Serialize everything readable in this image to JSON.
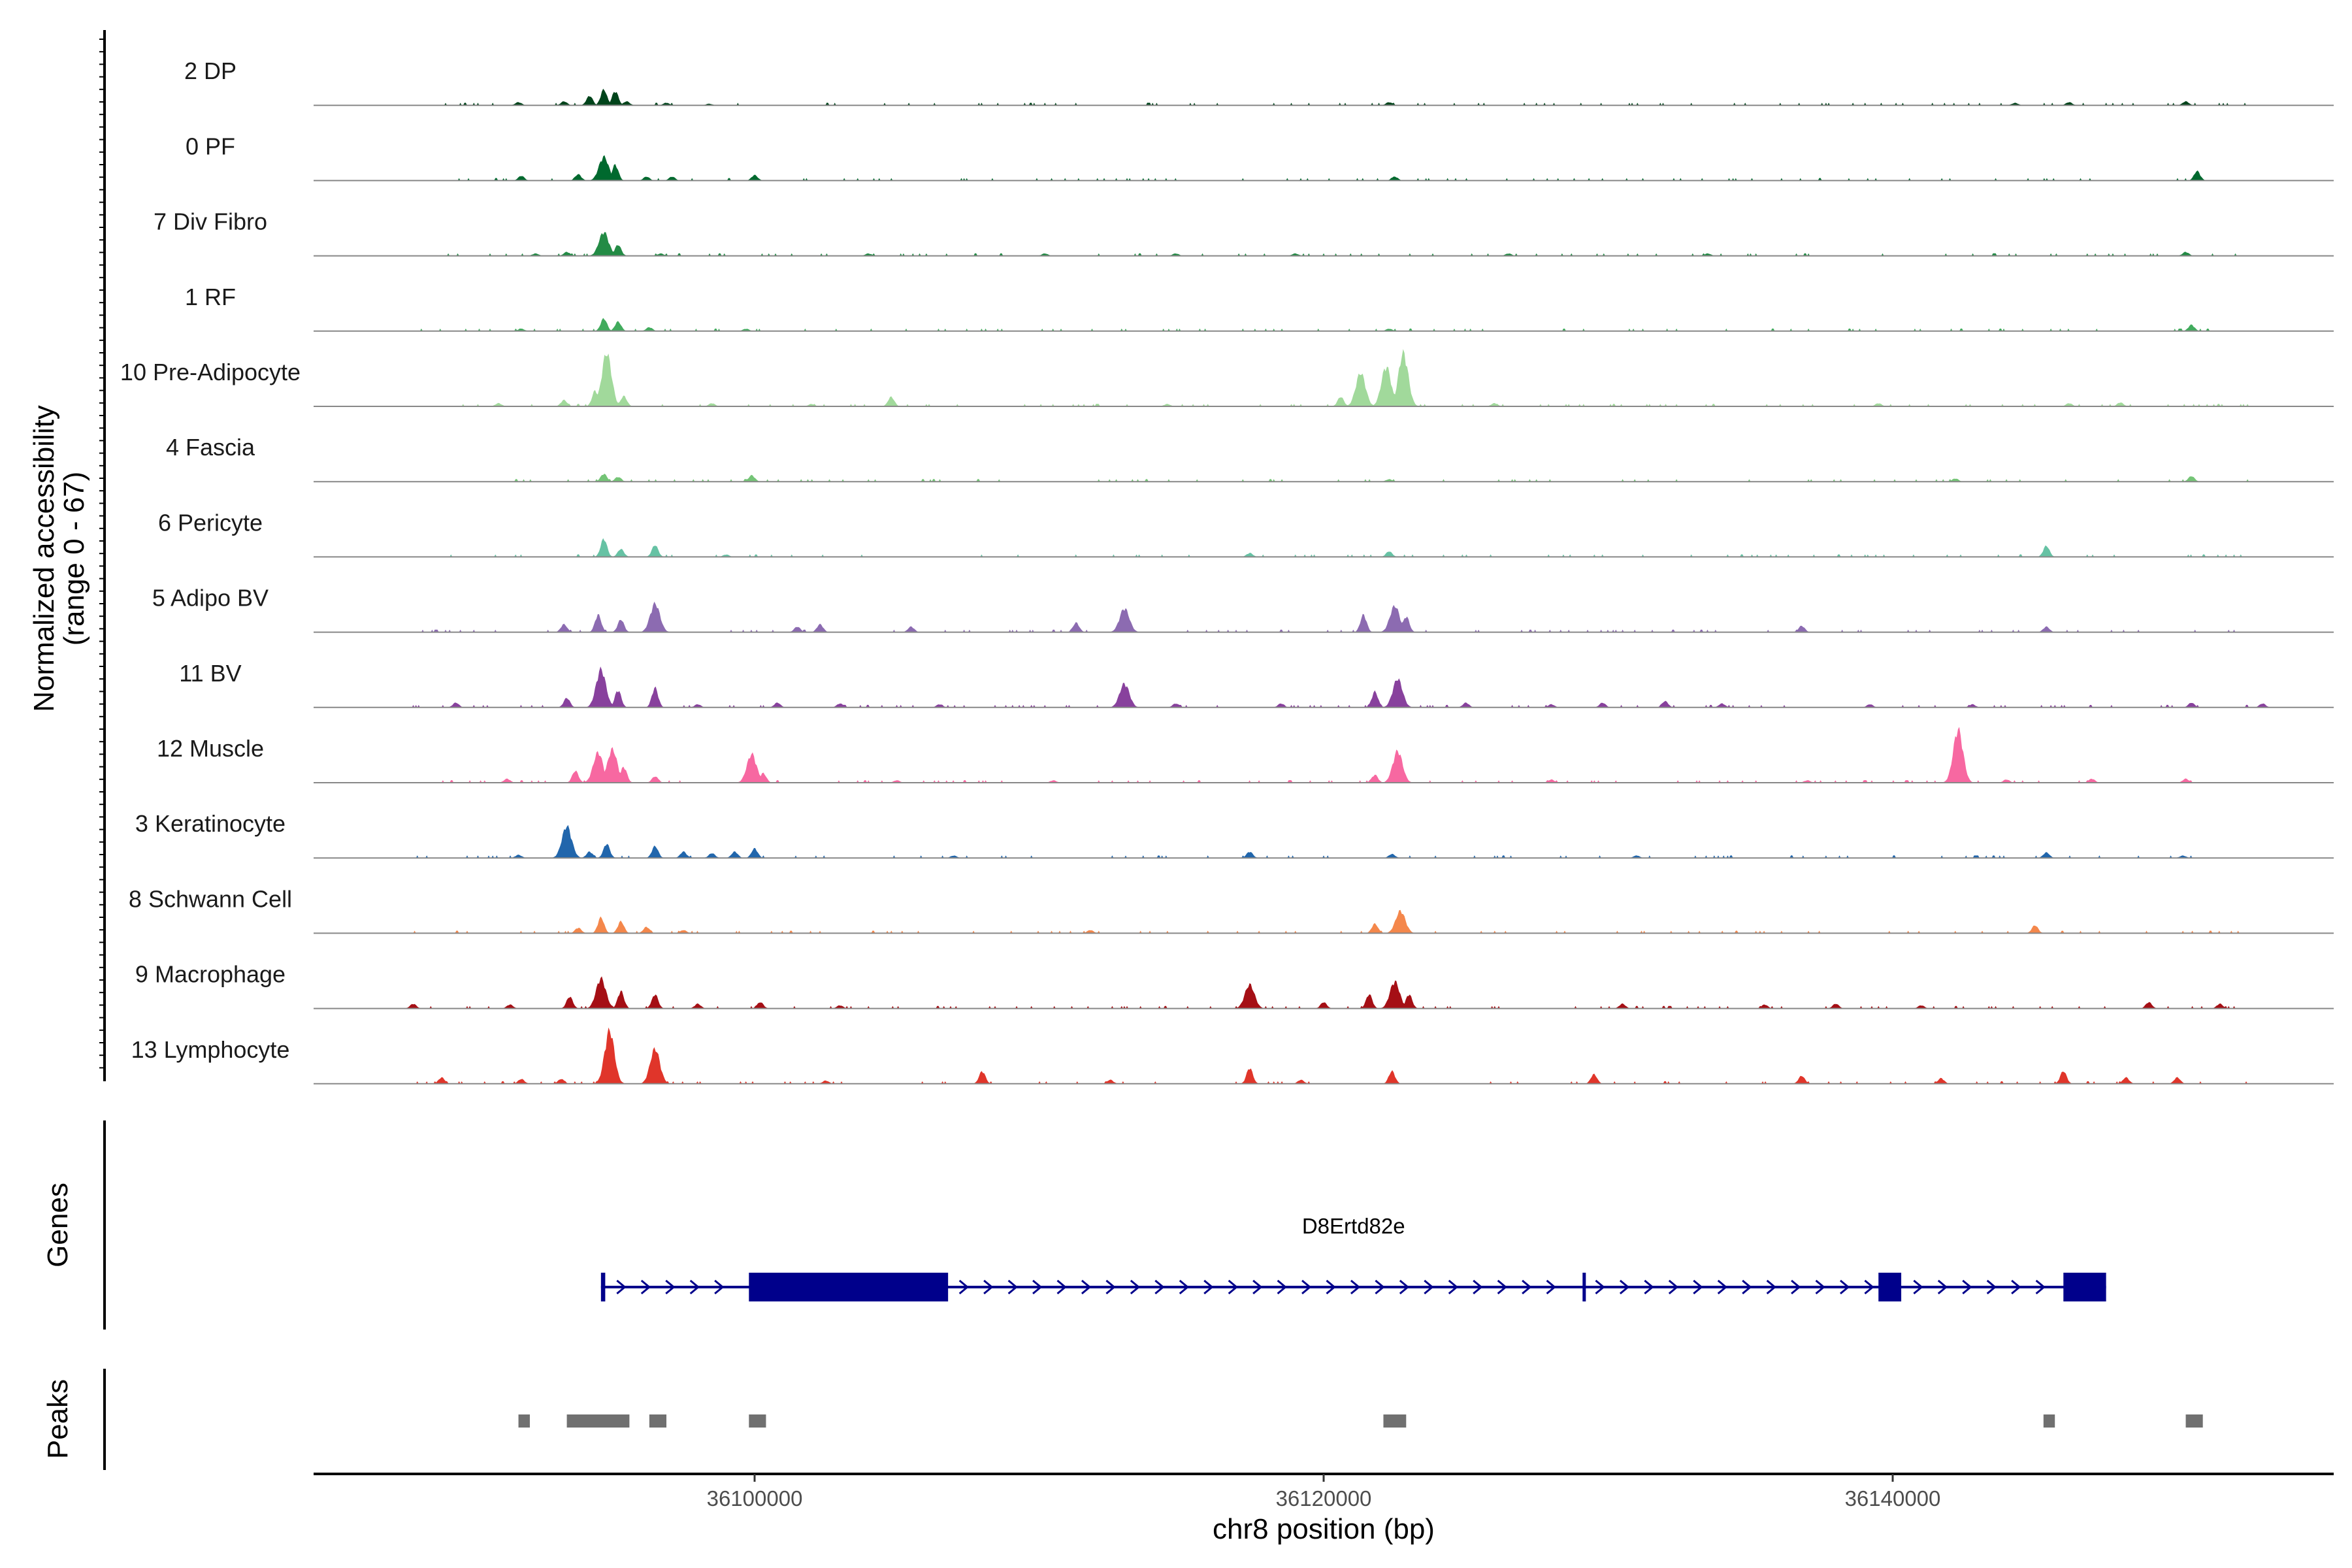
{
  "chart_data": {
    "type": "area",
    "title": "",
    "ylabel": "Normalized accessibility\n(range 0 - 67)",
    "xlabel": "chr8 position (bp)",
    "xlim": [
      36084500,
      36155500
    ],
    "ylim": [
      0,
      67
    ],
    "x_ticks": [
      36100000,
      36120000,
      36140000
    ],
    "x_tick_labels": [
      "36100000",
      "36120000",
      "36140000"
    ],
    "tracks": [
      {
        "name": "2 DP",
        "color": "#00441b",
        "peaks": [
          [
            36091700,
            4
          ],
          [
            36093300,
            5
          ],
          [
            36094200,
            12
          ],
          [
            36094700,
            20
          ],
          [
            36095100,
            18
          ],
          [
            36095500,
            5
          ],
          [
            36096900,
            3
          ],
          [
            36098400,
            2
          ],
          [
            36122300,
            4
          ],
          [
            36144300,
            3
          ],
          [
            36146200,
            4
          ],
          [
            36150300,
            5
          ]
        ]
      },
      {
        "name": "0 PF",
        "color": "#00692e",
        "peaks": [
          [
            36091800,
            6
          ],
          [
            36093800,
            8
          ],
          [
            36094700,
            30
          ],
          [
            36095100,
            20
          ],
          [
            36096200,
            5
          ],
          [
            36097100,
            5
          ],
          [
            36100000,
            7
          ],
          [
            36122500,
            5
          ],
          [
            36150700,
            12
          ]
        ]
      },
      {
        "name": "7 Div Fibro",
        "color": "#238b45",
        "peaks": [
          [
            36092300,
            3
          ],
          [
            36093400,
            5
          ],
          [
            36094700,
            30
          ],
          [
            36095200,
            14
          ],
          [
            36096700,
            3
          ],
          [
            36104000,
            3
          ],
          [
            36110200,
            3
          ],
          [
            36114800,
            3
          ],
          [
            36119000,
            3
          ],
          [
            36126500,
            3
          ],
          [
            36133500,
            3
          ],
          [
            36150300,
            5
          ]
        ]
      },
      {
        "name": "1 RF",
        "color": "#41ab5d",
        "peaks": [
          [
            36091800,
            3
          ],
          [
            36094700,
            16
          ],
          [
            36095200,
            12
          ],
          [
            36096300,
            5
          ],
          [
            36099700,
            3
          ],
          [
            36122300,
            3
          ],
          [
            36150500,
            8
          ]
        ]
      },
      {
        "name": "10 Pre-Adipocyte",
        "color": "#a1d99b",
        "peaks": [
          [
            36091000,
            4
          ],
          [
            36093300,
            8
          ],
          [
            36094400,
            20
          ],
          [
            36094800,
            67
          ],
          [
            36095400,
            13
          ],
          [
            36098500,
            4
          ],
          [
            36102000,
            3
          ],
          [
            36104800,
            12
          ],
          [
            36114500,
            3
          ],
          [
            36120600,
            12
          ],
          [
            36121300,
            42
          ],
          [
            36122200,
            50
          ],
          [
            36122800,
            67
          ],
          [
            36126000,
            4
          ],
          [
            36139500,
            4
          ],
          [
            36146200,
            4
          ],
          [
            36148000,
            5
          ]
        ]
      },
      {
        "name": "4 Fascia",
        "color": "#74c476",
        "peaks": [
          [
            36094700,
            10
          ],
          [
            36095200,
            6
          ],
          [
            36099900,
            8
          ],
          [
            36122300,
            3
          ],
          [
            36142200,
            4
          ],
          [
            36150500,
            7
          ]
        ]
      },
      {
        "name": "6 Pericyte",
        "color": "#66c2a4",
        "peaks": [
          [
            36094700,
            23
          ],
          [
            36095300,
            10
          ],
          [
            36096500,
            15
          ],
          [
            36099000,
            3
          ],
          [
            36117400,
            5
          ],
          [
            36122300,
            7
          ],
          [
            36145400,
            14
          ]
        ]
      },
      {
        "name": "5 Adipo BV",
        "color": "#8c6bb1",
        "peaks": [
          [
            36093300,
            10
          ],
          [
            36094500,
            22
          ],
          [
            36095300,
            16
          ],
          [
            36096500,
            36
          ],
          [
            36101500,
            7
          ],
          [
            36102300,
            10
          ],
          [
            36105500,
            7
          ],
          [
            36111300,
            12
          ],
          [
            36113000,
            30
          ],
          [
            36121400,
            22
          ],
          [
            36122500,
            33
          ],
          [
            36122900,
            20
          ],
          [
            36136800,
            8
          ],
          [
            36145400,
            7
          ]
        ]
      },
      {
        "name": "11 BV",
        "color": "#88419d",
        "peaks": [
          [
            36089500,
            6
          ],
          [
            36093400,
            12
          ],
          [
            36094600,
            48
          ],
          [
            36095200,
            22
          ],
          [
            36096500,
            25
          ],
          [
            36098000,
            4
          ],
          [
            36100800,
            6
          ],
          [
            36103000,
            5
          ],
          [
            36106500,
            4
          ],
          [
            36113000,
            30
          ],
          [
            36114800,
            5
          ],
          [
            36118500,
            5
          ],
          [
            36121800,
            20
          ],
          [
            36122600,
            36
          ],
          [
            36125000,
            6
          ],
          [
            36128000,
            4
          ],
          [
            36129800,
            6
          ],
          [
            36132000,
            8
          ],
          [
            36134000,
            5
          ],
          [
            36139200,
            4
          ],
          [
            36142800,
            4
          ],
          [
            36150500,
            6
          ],
          [
            36153000,
            5
          ]
        ]
      },
      {
        "name": "12 Muscle",
        "color": "#f768a1",
        "peaks": [
          [
            36091300,
            5
          ],
          [
            36093700,
            15
          ],
          [
            36094500,
            38
          ],
          [
            36095000,
            42
          ],
          [
            36095400,
            20
          ],
          [
            36096500,
            8
          ],
          [
            36099900,
            36
          ],
          [
            36100300,
            12
          ],
          [
            36105000,
            3
          ],
          [
            36110500,
            3
          ],
          [
            36121800,
            10
          ],
          [
            36122600,
            40
          ],
          [
            36128000,
            4
          ],
          [
            36137000,
            3
          ],
          [
            36142300,
            67
          ],
          [
            36144000,
            4
          ],
          [
            36147000,
            5
          ],
          [
            36150300,
            5
          ]
        ]
      },
      {
        "name": "3 Keratinocyte",
        "color": "#2166ac",
        "peaks": [
          [
            36091700,
            4
          ],
          [
            36093400,
            40
          ],
          [
            36094200,
            8
          ],
          [
            36094800,
            18
          ],
          [
            36096500,
            15
          ],
          [
            36097500,
            8
          ],
          [
            36098500,
            6
          ],
          [
            36099300,
            8
          ],
          [
            36100000,
            12
          ],
          [
            36107000,
            3
          ],
          [
            36117400,
            8
          ],
          [
            36122400,
            5
          ],
          [
            36131000,
            3
          ],
          [
            36145400,
            7
          ],
          [
            36150200,
            3
          ]
        ]
      },
      {
        "name": "8 Schwann Cell",
        "color": "#f4874b",
        "peaks": [
          [
            36093800,
            7
          ],
          [
            36094600,
            20
          ],
          [
            36095300,
            15
          ],
          [
            36096200,
            8
          ],
          [
            36097500,
            4
          ],
          [
            36111800,
            4
          ],
          [
            36121800,
            12
          ],
          [
            36122700,
            28
          ],
          [
            36145000,
            10
          ]
        ]
      },
      {
        "name": "9 Macrophage",
        "color": "#a50f15",
        "peaks": [
          [
            36088000,
            6
          ],
          [
            36091400,
            5
          ],
          [
            36093500,
            15
          ],
          [
            36094600,
            38
          ],
          [
            36095300,
            22
          ],
          [
            36096500,
            18
          ],
          [
            36098000,
            6
          ],
          [
            36100200,
            8
          ],
          [
            36103000,
            4
          ],
          [
            36117400,
            30
          ],
          [
            36120000,
            8
          ],
          [
            36121600,
            18
          ],
          [
            36122500,
            34
          ],
          [
            36123000,
            18
          ],
          [
            36130500,
            6
          ],
          [
            36135500,
            5
          ],
          [
            36138000,
            6
          ],
          [
            36141000,
            4
          ],
          [
            36149000,
            8
          ],
          [
            36151500,
            6
          ]
        ]
      },
      {
        "name": "13 Lymphocyte",
        "color": "#e0352a",
        "peaks": [
          [
            36089000,
            8
          ],
          [
            36091800,
            6
          ],
          [
            36093200,
            6
          ],
          [
            36094900,
            67
          ],
          [
            36096500,
            44
          ],
          [
            36102500,
            4
          ],
          [
            36108000,
            16
          ],
          [
            36112500,
            5
          ],
          [
            36117400,
            20
          ],
          [
            36119200,
            5
          ],
          [
            36122400,
            16
          ],
          [
            36129500,
            12
          ],
          [
            36136800,
            10
          ],
          [
            36141700,
            7
          ],
          [
            36146000,
            16
          ],
          [
            36148200,
            8
          ],
          [
            36150000,
            8
          ]
        ]
      }
    ],
    "genes": {
      "label": "Genes",
      "name": "D8Ertd82e",
      "start": 36094600,
      "end": 36147500,
      "strand": "+",
      "color": "#00008b",
      "exons": [
        [
          36094600,
          36094750
        ],
        [
          36099800,
          36106800
        ],
        [
          36129100,
          36129200
        ],
        [
          36139500,
          36140300
        ],
        [
          36146000,
          36147500
        ]
      ]
    },
    "peaks": {
      "label": "Peaks",
      "color": "#707070",
      "regions": [
        [
          36091700,
          36092100
        ],
        [
          36093400,
          36095600
        ],
        [
          36096300,
          36096900
        ],
        [
          36099800,
          36100400
        ],
        [
          36122100,
          36122900
        ],
        [
          36145300,
          36145700
        ],
        [
          36150300,
          36150900
        ]
      ]
    }
  }
}
